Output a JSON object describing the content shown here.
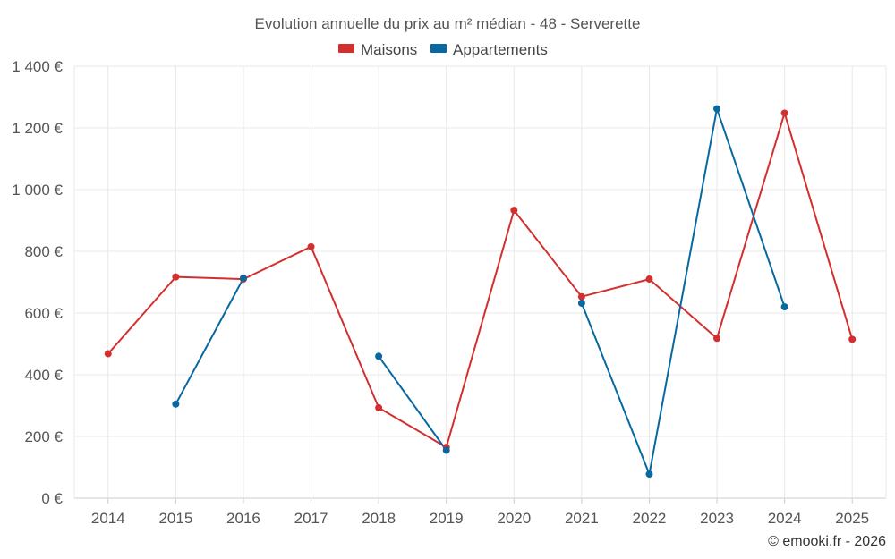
{
  "chart_data": {
    "type": "line",
    "title": "Evolution annuelle du prix au m² médian - 48 - Serverette",
    "categories": [
      "2014",
      "2015",
      "2016",
      "2017",
      "2018",
      "2019",
      "2020",
      "2021",
      "2022",
      "2023",
      "2024",
      "2025"
    ],
    "ylim": [
      0,
      1400
    ],
    "yticks": [
      0,
      200,
      400,
      600,
      800,
      1000,
      1200,
      1400
    ],
    "ytick_labels": [
      "0 €",
      "200 €",
      "400 €",
      "600 €",
      "800 €",
      "1 000 €",
      "1 200 €",
      "1 400 €"
    ],
    "xlabel": "",
    "ylabel": "",
    "grid": true,
    "legend_position": "top-center",
    "series": [
      {
        "name": "Maisons",
        "color": "#d32f2f",
        "values": [
          468,
          717,
          710,
          815,
          293,
          165,
          933,
          653,
          710,
          518,
          1248,
          515
        ]
      },
      {
        "name": "Appartements",
        "color": "#0868a0",
        "values": [
          null,
          305,
          713,
          null,
          460,
          155,
          null,
          632,
          78,
          1262,
          620,
          null
        ]
      }
    ]
  },
  "credit": "© emooki.fr - 2026"
}
